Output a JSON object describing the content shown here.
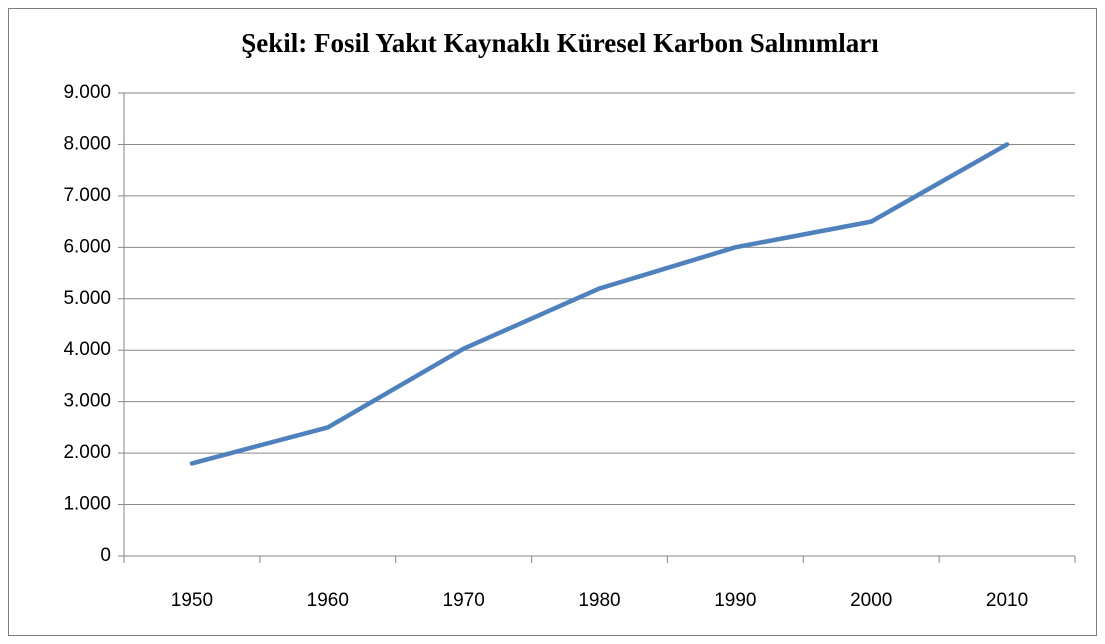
{
  "chart_data": {
    "type": "line",
    "title": "Şekil: Fosil Yakıt Kaynaklı Küresel Karbon Salınımları",
    "categories": [
      "1950",
      "1960",
      "1970",
      "1980",
      "1990",
      "2000",
      "2010"
    ],
    "values": [
      1800,
      2500,
      4030,
      5200,
      6000,
      6500,
      8000
    ],
    "color": "#4f81bd",
    "ylim": [
      0,
      9000
    ],
    "yticks": [
      0,
      {
        "value": 1000,
        "label": "1.000"
      },
      {
        "value": 2000,
        "label": "2.000"
      },
      {
        "value": 3000,
        "label": "3.000"
      },
      {
        "value": 4000,
        "label": "4.000"
      },
      {
        "value": 5000,
        "label": "5.000"
      },
      {
        "value": 6000,
        "label": "6.000"
      },
      {
        "value": 7000,
        "label": "7.000"
      },
      {
        "value": 8000,
        "label": "8.000"
      },
      {
        "value": 9000,
        "label": "9.000"
      }
    ],
    "grid": true
  }
}
